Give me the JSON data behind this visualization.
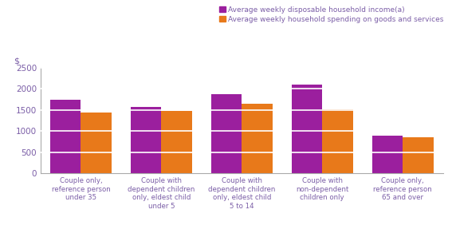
{
  "categories": [
    "Couple only,\nreference person\nunder 35",
    "Couple with\ndependent children\nonly, eldest child\nunder 5",
    "Couple with\ndependent children\nonly, eldest child\n5 to 14",
    "Couple with\nnon-dependent\nchildren only",
    "Couple only,\nreference person\n65 and over"
  ],
  "income": [
    1730,
    1565,
    1880,
    2090,
    895
  ],
  "spending": [
    1435,
    1480,
    1650,
    1510,
    850
  ],
  "income_color": "#9B1F9E",
  "spending_color": "#E8791A",
  "ylabel": "$",
  "ylim": [
    0,
    2500
  ],
  "yticks": [
    0,
    500,
    1000,
    1500,
    2000,
    2500
  ],
  "legend_income": "Average weekly disposable household income(a)",
  "legend_spending": "Average weekly household spending on goods and services",
  "bar_width": 0.38,
  "grid_color": "#FFFFFF",
  "bg_color": "#FFFFFF",
  "tick_label_color": "#7B5EA7",
  "axis_color": "#888888",
  "legend_text_color": "#7B5EA7",
  "ylabel_color": "#7B5EA7"
}
